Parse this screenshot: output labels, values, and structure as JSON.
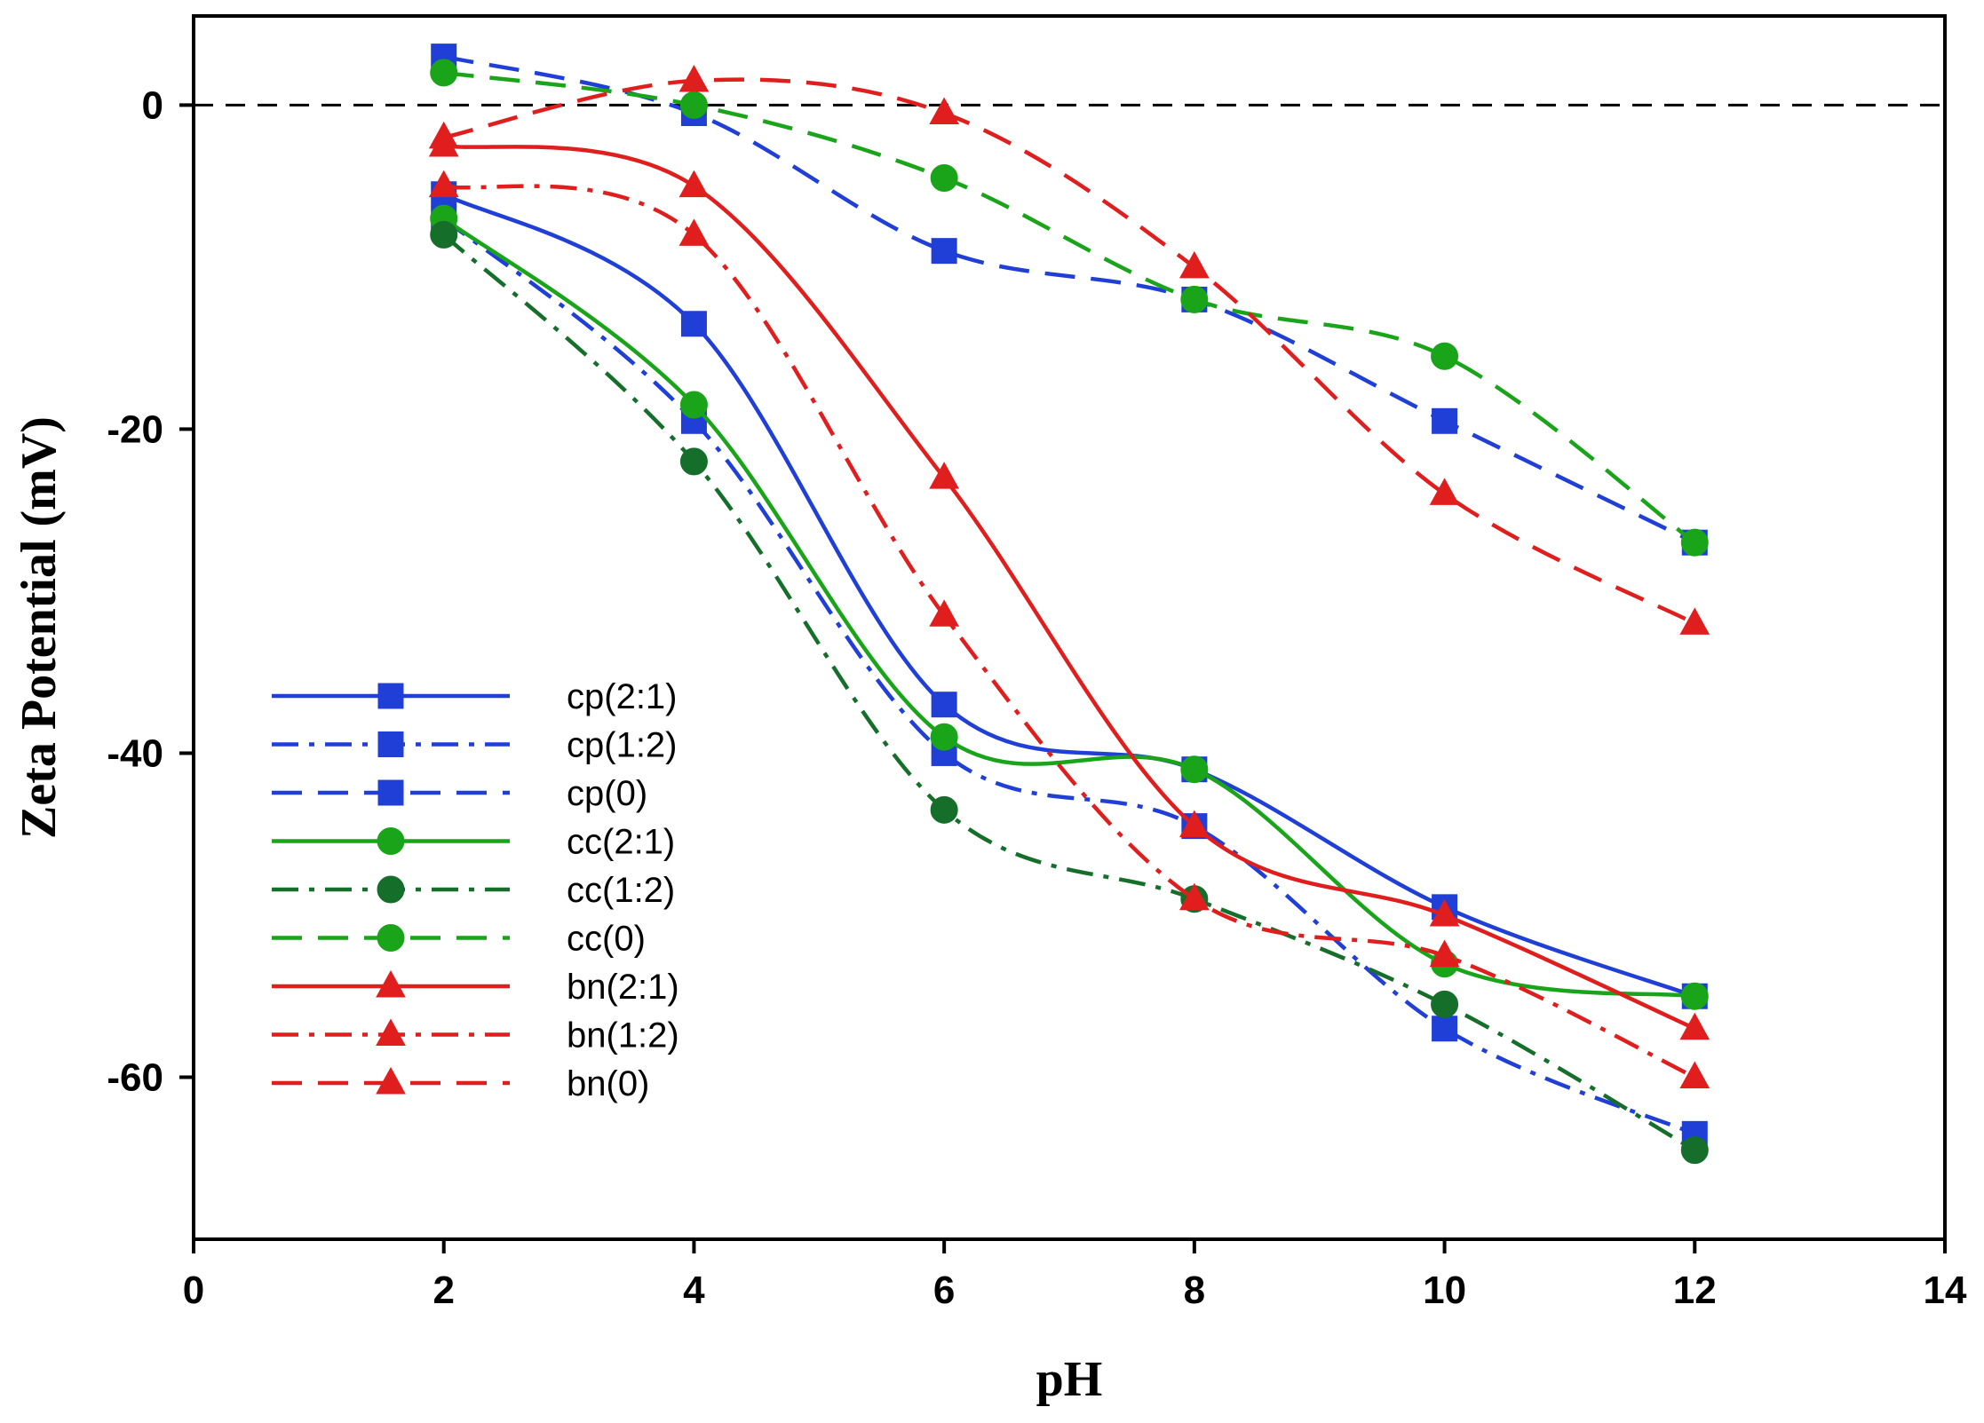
{
  "chart_data": {
    "type": "line",
    "title": "",
    "xlabel": "pH",
    "ylabel": "Zeta Potential (mV)",
    "xlim": [
      0,
      14
    ],
    "ylim": [
      -70,
      5.5
    ],
    "xticks": [
      "0",
      "2",
      "4",
      "6",
      "8",
      "10",
      "12",
      "14"
    ],
    "yticks": [
      "0",
      "-20",
      "-40",
      "-60"
    ],
    "reference_line": {
      "y": 0,
      "style": "dashed"
    },
    "legend_position": "middle-left",
    "x": [
      2,
      4,
      6,
      8,
      10,
      12
    ],
    "series": [
      {
        "name": "cp(2:1)",
        "color": "#1f3fd6",
        "dash": "solid",
        "marker": "square",
        "values": [
          -5.5,
          -13.5,
          -37,
          -41,
          -49.5,
          -55
        ]
      },
      {
        "name": "cp(1:2)",
        "color": "#1f3fd6",
        "dash": "dashdot",
        "marker": "square",
        "values": [
          -7,
          -19.5,
          -40,
          -44.5,
          -57,
          -63.5
        ]
      },
      {
        "name": "cp(0)",
        "color": "#1f3fd6",
        "dash": "dashed",
        "marker": "square",
        "values": [
          3,
          -0.5,
          -9,
          -12,
          -19.5,
          -27
        ]
      },
      {
        "name": "cc(2:1)",
        "color": "#1aa41a",
        "dash": "solid",
        "marker": "circle",
        "values": [
          -7,
          -18.5,
          -39,
          -41,
          -53,
          -55
        ]
      },
      {
        "name": "cc(1:2)",
        "color": "#156f2a",
        "dash": "dashdot",
        "marker": "circle",
        "values": [
          -8,
          -22,
          -43.5,
          -49,
          -55.5,
          -64.5
        ]
      },
      {
        "name": "cc(0)",
        "color": "#1aa41a",
        "dash": "dashed",
        "marker": "circle",
        "values": [
          2,
          0,
          -4.5,
          -12,
          -15.5,
          -27
        ]
      },
      {
        "name": "bn(2:1)",
        "color": "#e01e1e",
        "dash": "solid",
        "marker": "triangle",
        "values": [
          -2.5,
          -5,
          -23,
          -44.5,
          -50,
          -57
        ]
      },
      {
        "name": "bn(1:2)",
        "color": "#e01e1e",
        "dash": "dashdot",
        "marker": "triangle",
        "values": [
          -5,
          -8,
          -31.5,
          -49,
          -52.5,
          -60
        ]
      },
      {
        "name": "bn(0)",
        "color": "#e01e1e",
        "dash": "dashed",
        "marker": "triangle",
        "values": [
          -2,
          1.5,
          -0.5,
          -10,
          -24,
          -32
        ]
      }
    ]
  }
}
